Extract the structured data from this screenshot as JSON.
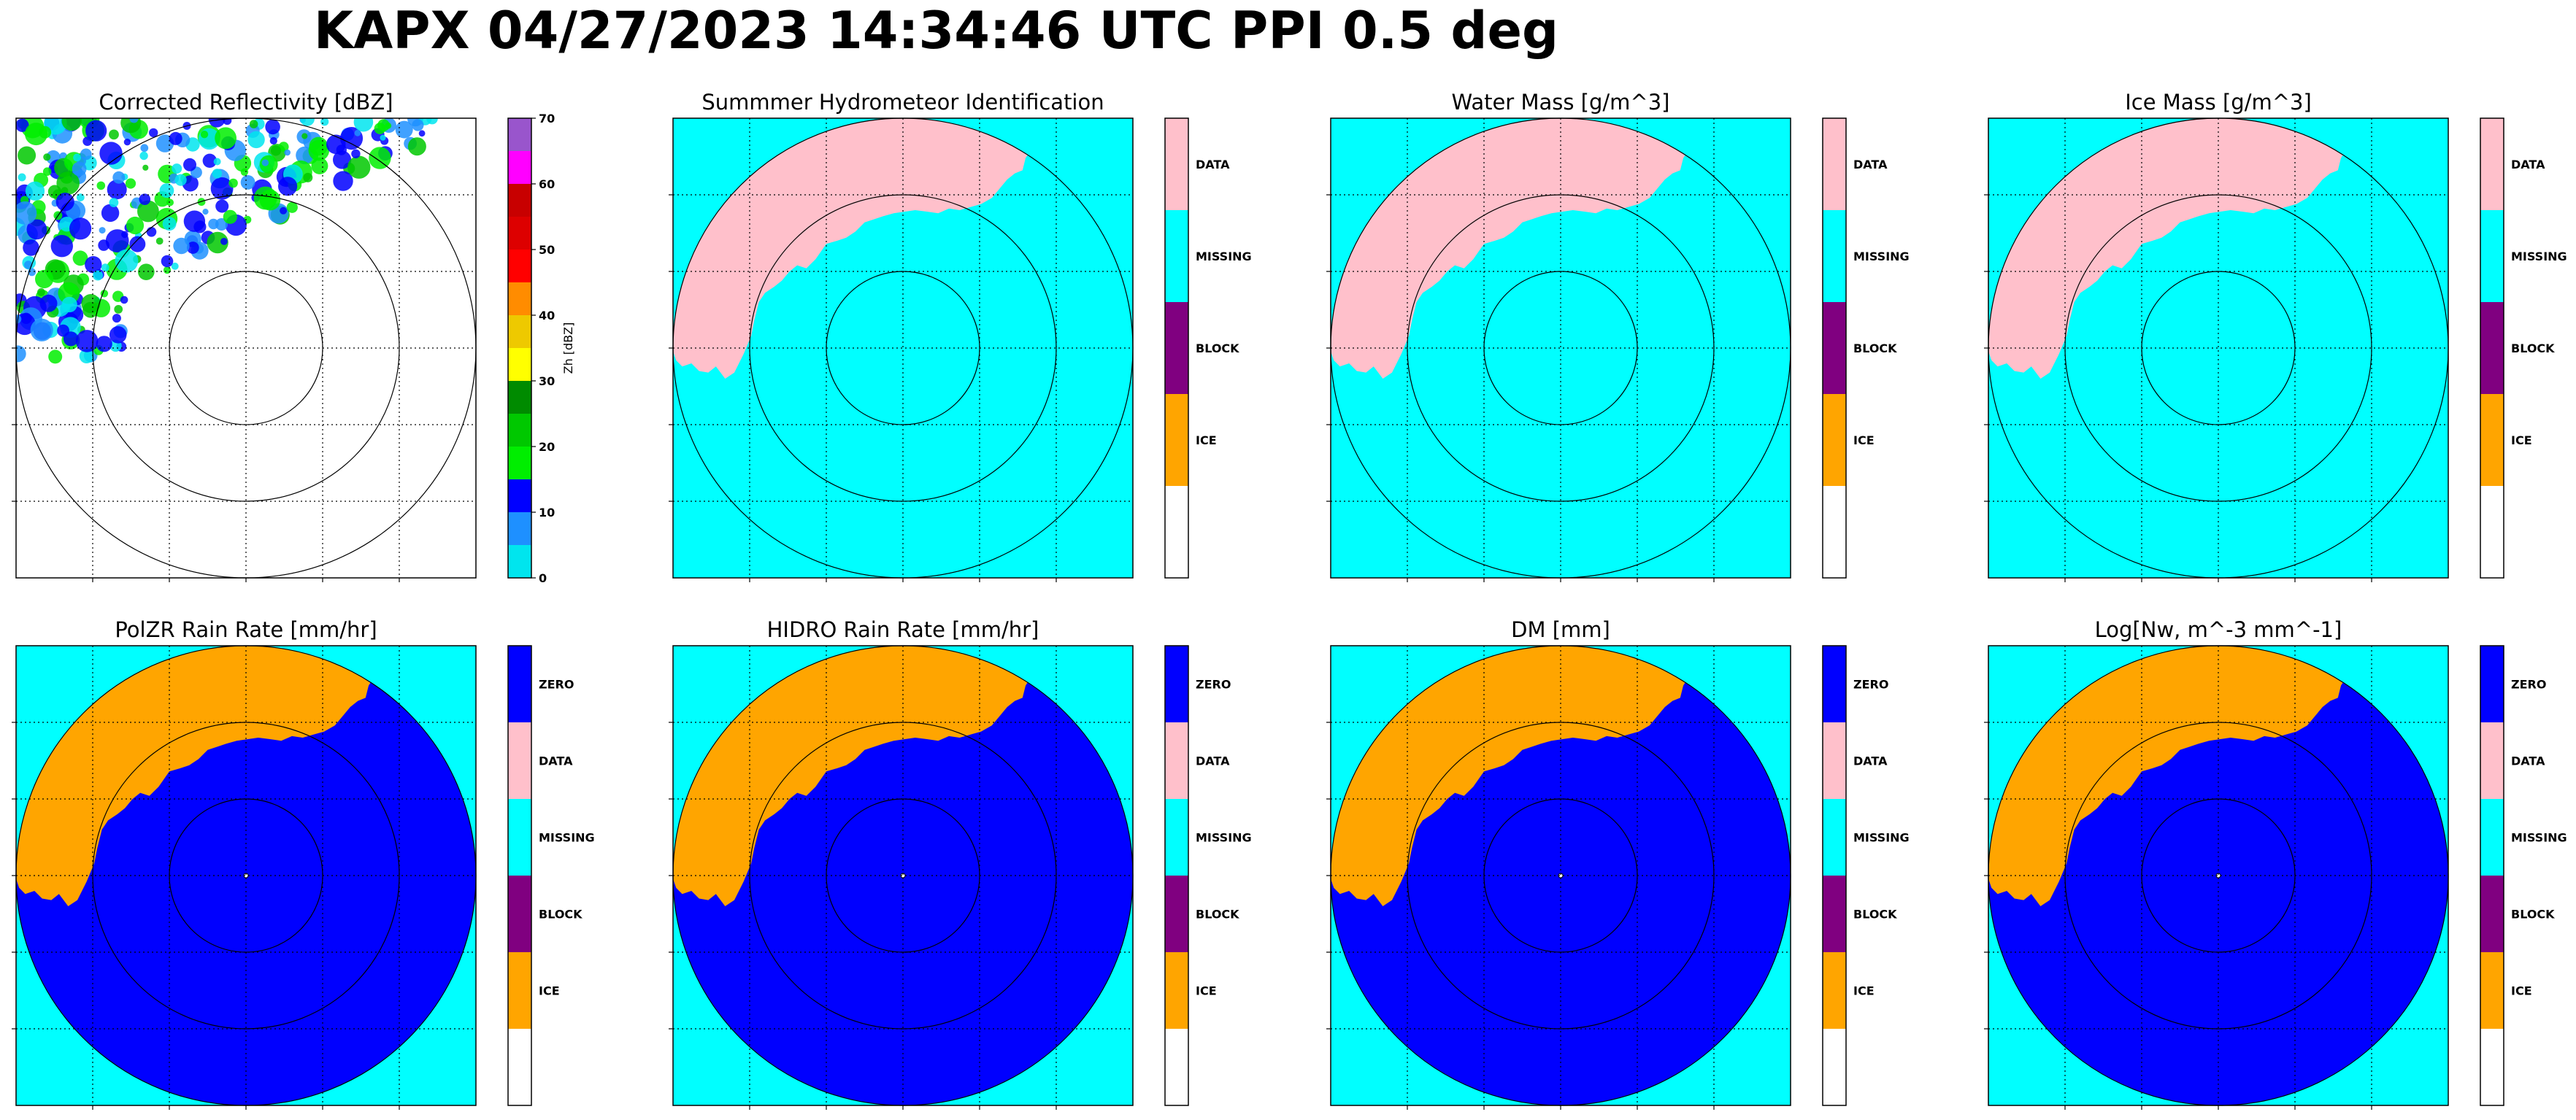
{
  "title": "KAPX 04/27/2023 14:34:46 UTC PPI 0.5 deg",
  "colors": {
    "background": "#00ffff",
    "zero": "#0000ff",
    "data": "#ffc0cb",
    "missing": "#00ffff",
    "block": "#800080",
    "ice": "#ffa500",
    "empty": "#ffffff"
  },
  "chart_data": [
    {
      "type": "heatmap",
      "title": "Corrected Reflectivity [dBZ]",
      "colorbar": {
        "kind": "continuous",
        "label": "Zh [dBZ]",
        "range": [
          0,
          70
        ],
        "ticks": [
          "0",
          "10",
          "20",
          "30",
          "40",
          "50",
          "60",
          "70"
        ],
        "colors": [
          "#00e5ee",
          "#1e90ff",
          "#0000ff",
          "#00ee00",
          "#00c800",
          "#008b00",
          "#ffff00",
          "#eec900",
          "#ff8c00",
          "#ff0000",
          "#dd0000",
          "#c80000",
          "#ff00ff",
          "#9955cc"
        ]
      },
      "range_rings_km": [
        50,
        100,
        150
      ],
      "grid": true
    },
    {
      "type": "heatmap",
      "title": "Summmer Hydrometeor Identification",
      "colorbar": {
        "kind": "categorical",
        "categories": [
          "DATA",
          "MISSING",
          "BLOCK",
          "ICE",
          ""
        ]
      },
      "range_rings_km": [
        50,
        100,
        150
      ],
      "grid": true
    },
    {
      "type": "heatmap",
      "title": "Water Mass [g/m^3]",
      "colorbar": {
        "kind": "categorical",
        "categories": [
          "DATA",
          "MISSING",
          "BLOCK",
          "ICE",
          ""
        ]
      },
      "range_rings_km": [
        50,
        100,
        150
      ],
      "grid": true
    },
    {
      "type": "heatmap",
      "title": "Ice Mass [g/m^3]",
      "colorbar": {
        "kind": "categorical",
        "categories": [
          "DATA",
          "MISSING",
          "BLOCK",
          "ICE",
          ""
        ]
      },
      "range_rings_km": [
        50,
        100,
        150
      ],
      "grid": true
    },
    {
      "type": "heatmap",
      "title": "PolZR Rain Rate [mm/hr]",
      "colorbar": {
        "kind": "categorical",
        "categories": [
          "ZERO",
          "DATA",
          "MISSING",
          "BLOCK",
          "ICE",
          ""
        ]
      },
      "range_rings_km": [
        50,
        100,
        150
      ],
      "grid": true
    },
    {
      "type": "heatmap",
      "title": "HIDRO Rain Rate [mm/hr]",
      "colorbar": {
        "kind": "categorical",
        "categories": [
          "ZERO",
          "DATA",
          "MISSING",
          "BLOCK",
          "ICE",
          ""
        ]
      },
      "range_rings_km": [
        50,
        100,
        150
      ],
      "grid": true
    },
    {
      "type": "heatmap",
      "title": "DM [mm]",
      "colorbar": {
        "kind": "categorical",
        "categories": [
          "ZERO",
          "DATA",
          "MISSING",
          "BLOCK",
          "ICE",
          ""
        ]
      },
      "range_rings_km": [
        50,
        100,
        150
      ],
      "grid": true
    },
    {
      "type": "heatmap",
      "title": "Log[Nw, m^-3 mm^-1]",
      "colorbar": {
        "kind": "categorical",
        "categories": [
          "ZERO",
          "DATA",
          "MISSING",
          "BLOCK",
          "ICE",
          ""
        ]
      },
      "range_rings_km": [
        50,
        100,
        150
      ],
      "grid": true
    }
  ]
}
